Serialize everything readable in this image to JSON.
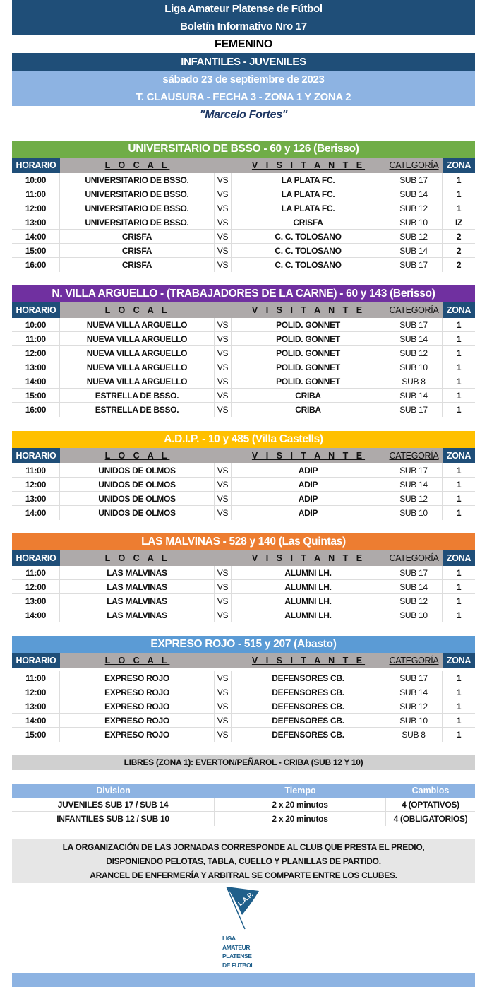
{
  "header": {
    "league": "Liga Amateur Platense de Fútbol",
    "bulletin": "Boletín Informativo Nro 17",
    "gender": "FEMENINO",
    "categories": "INFANTILES - JUVENILES",
    "date": "sábado 23 de septiembre de 2023",
    "tournament": "T. CLAUSURA - FECHA 3 - ZONA 1 Y ZONA 2",
    "dedication": "\"Marcelo Fortes\""
  },
  "columns": {
    "time": "HORARIO",
    "local": "L O C A L",
    "visitor": "V I S I T A N T E",
    "category": "CATEGORÍA",
    "zone": "ZONA"
  },
  "sections": [
    {
      "title": "UNIVERSITARIO DE BSSO - 60 y 126 (Berisso)",
      "color": "#70ad47",
      "top": 199,
      "rows": [
        [
          "10:00",
          "UNIVERSITARIO DE BSSO.",
          "VS",
          "LA PLATA FC.",
          "SUB 17",
          "1"
        ],
        [
          "11:00",
          "UNIVERSITARIO DE BSSO.",
          "VS",
          "LA PLATA FC.",
          "SUB 14",
          "1"
        ],
        [
          "12:00",
          "UNIVERSITARIO DE BSSO.",
          "VS",
          "LA PLATA FC.",
          "SUB 12",
          "1"
        ],
        [
          "13:00",
          "UNIVERSITARIO DE BSSO.",
          "VS",
          "CRISFA",
          "SUB 10",
          "IZ"
        ],
        [
          "14:00",
          "CRISFA",
          "VS",
          "C. C. TOLOSANO",
          "SUB 12",
          "2"
        ],
        [
          "15:00",
          "CRISFA",
          "VS",
          "C. C. TOLOSANO",
          "SUB 14",
          "2"
        ],
        [
          "16:00",
          "CRISFA",
          "VS",
          "C. C. TOLOSANO",
          "SUB 17",
          "2"
        ]
      ]
    },
    {
      "title": "N. VILLA ARGUELLO - (TRABAJADORES DE LA CARNE) - 60 y 143 (Berisso)",
      "color": "#7030a0",
      "top": 404,
      "rows": [
        [
          "10:00",
          "NUEVA VILLA ARGUELLO",
          "VS",
          "POLID. GONNET",
          "SUB 17",
          "1"
        ],
        [
          "11:00",
          "NUEVA VILLA ARGUELLO",
          "VS",
          "POLID. GONNET",
          "SUB 14",
          "1"
        ],
        [
          "12:00",
          "NUEVA VILLA ARGUELLO",
          "VS",
          "POLID. GONNET",
          "SUB 12",
          "1"
        ],
        [
          "13:00",
          "NUEVA VILLA ARGUELLO",
          "VS",
          "POLID. GONNET",
          "SUB 10",
          "1"
        ],
        [
          "14:00",
          "NUEVA VILLA ARGUELLO",
          "VS",
          "POLID. GONNET",
          "SUB 8",
          "1"
        ],
        [
          "15:00",
          "ESTRELLA DE BSSO.",
          "VS",
          "CRIBA",
          "SUB 14",
          "1"
        ],
        [
          "16:00",
          "ESTRELLA DE BSSO.",
          "VS",
          "CRIBA",
          "SUB 17",
          "1"
        ]
      ]
    },
    {
      "title": "A.D.I.P. - 10 y 485 (Villa Castells)",
      "color": "#ffc000",
      "top": 610,
      "rows": [
        [
          "11:00",
          "UNIDOS DE OLMOS",
          "VS",
          "ADIP",
          "SUB 17",
          "1"
        ],
        [
          "12:00",
          "UNIDOS DE OLMOS",
          "VS",
          "ADIP",
          "SUB 14",
          "1"
        ],
        [
          "13:00",
          "UNIDOS DE OLMOS",
          "VS",
          "ADIP",
          "SUB 12",
          "1"
        ],
        [
          "14:00",
          "UNIDOS DE OLMOS",
          "VS",
          "ADIP",
          "SUB 10",
          "1"
        ]
      ]
    },
    {
      "title": "LAS MALVINAS - 528 y 140 (Las Quintas)",
      "color": "#ed7d31",
      "top": 755,
      "rows": [
        [
          "11:00",
          "LAS MALVINAS",
          "VS",
          "ALUMNI LH.",
          "SUB 17",
          "1"
        ],
        [
          "12:00",
          "LAS MALVINAS",
          "VS",
          "ALUMNI LH.",
          "SUB 14",
          "1"
        ],
        [
          "13:00",
          "LAS MALVINAS",
          "VS",
          "ALUMNI LH.",
          "SUB 12",
          "1"
        ],
        [
          "14:00",
          "LAS MALVINAS",
          "VS",
          "ALUMNI LH.",
          "SUB 10",
          "1"
        ]
      ]
    },
    {
      "title": "EXPRESO ROJO - 515 y 207 (Abasto)",
      "color": "#5b9bd5",
      "top": 900,
      "spacer": true,
      "rows": [
        [
          "11:00",
          "EXPRESO ROJO",
          "VS",
          "DEFENSORES CB.",
          "SUB 17",
          "1"
        ],
        [
          "12:00",
          "EXPRESO ROJO",
          "VS",
          "DEFENSORES CB.",
          "SUB 14",
          "1"
        ],
        [
          "13:00",
          "EXPRESO ROJO",
          "VS",
          "DEFENSORES CB.",
          "SUB 12",
          "1"
        ],
        [
          "14:00",
          "EXPRESO ROJO",
          "VS",
          "DEFENSORES CB.",
          "SUB 10",
          "1"
        ],
        [
          "15:00",
          "EXPRESO ROJO",
          "VS",
          "DEFENSORES CB.",
          "SUB 8",
          "1"
        ]
      ]
    }
  ],
  "libres": "LIBRES (ZONA 1): EVERTON/PEÑAROL - CRIBA (SUB 12 Y 10)",
  "divisions": {
    "headers": [
      "Division",
      "Tiempo",
      "Cambios"
    ],
    "rows": [
      [
        "JUVENILES SUB 17 / SUB 14",
        "2 x 20 minutos",
        "4 (OPTATIVOS)"
      ],
      [
        "INFANTILES SUB 12 / SUB 10",
        "2 x 20 minutos",
        "4 (OBLIGATORIOS)"
      ]
    ]
  },
  "notice": [
    "LA ORGANIZACIÓN DE LAS JORNADAS CORRESPONDE AL CLUB QUE PRESTA EL PREDIO,",
    "DISPONIENDO PELOTAS, TABLA, CUELLO Y PLANILLAS DE PARTIDO.",
    "ARANCEL DE ENFERMERÍA Y ARBITRAL SE COMPARTE ENTRE LOS CLUBES."
  ],
  "logo": {
    "flag_text": "L.A.P.",
    "lines": [
      "LIGA",
      "AMATEUR",
      "PLATENSE",
      "DE FUTBOL"
    ],
    "color": "#1f5f8b"
  }
}
